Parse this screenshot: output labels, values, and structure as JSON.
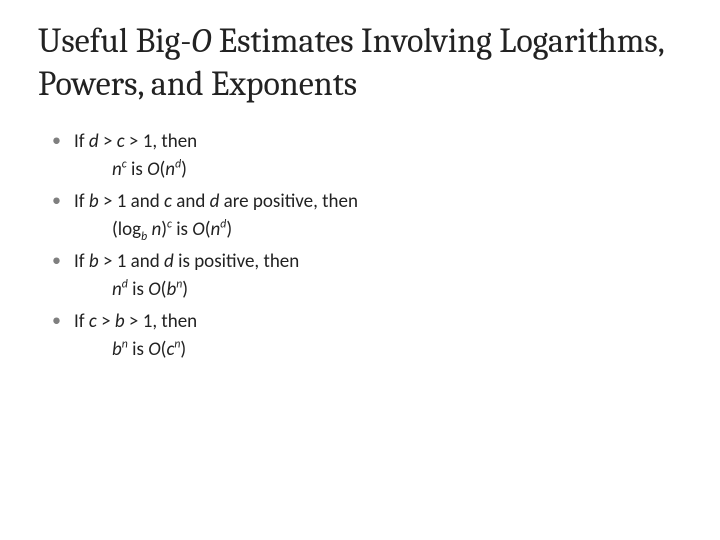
{
  "title_pre": "Useful Big-",
  "title_o": "O",
  "title_post": " Estimates Involving Logarithms, Powers, and Exponents",
  "bullets": [
    {
      "cond_pre": "If ",
      "cond_var1": "d",
      "cond_mid1": " > ",
      "cond_var2": "c",
      "cond_mid2": " > ",
      "cond_num": "1, then",
      "res_base1": "n",
      "res_exp1": "c",
      "res_is": " is ",
      "res_O": "O",
      "res_paren_open": "(",
      "res_base2": "n",
      "res_exp2": "d",
      "res_paren_close": ")"
    },
    {
      "cond_pre": "If  ",
      "cond_var1": "b",
      "cond_mid1": " > ",
      "cond_num1": "1  and ",
      "cond_var2": "c",
      "cond_and": " and ",
      "cond_var3": "d",
      "cond_post": " are positive, then",
      "res_popen": "(log",
      "res_sub": "b",
      "res_sp": "  ",
      "res_n": "n",
      "res_pclose": ")",
      "res_exp1": "c",
      "res_is": " is ",
      "res_O": "O",
      "res_O_open": "(",
      "res_base2": "n",
      "res_exp2": "d",
      "res_O_close": ")"
    },
    {
      "cond_pre": "If  ",
      "cond_var1": "b",
      "cond_mid1": " > ",
      "cond_num1": "1  and  ",
      "cond_var2": "d",
      "cond_post": " is positive, then",
      "res_base1": "n",
      "res_exp1": "d",
      "res_is": " is ",
      "res_O": "O",
      "res_open": "(",
      "res_base2": "b",
      "res_exp2": "n",
      "res_close": ")"
    },
    {
      "cond_pre": "If ",
      "cond_var1": "c",
      "cond_mid1": " > ",
      "cond_var2": "b",
      "cond_mid2": " > ",
      "cond_num": "1, then",
      "res_base1": "b",
      "res_exp1": "n",
      "res_is": " is ",
      "res_O": "O",
      "res_open": "(",
      "res_base2": "c",
      "res_exp2": "n",
      "res_close": ")"
    }
  ]
}
